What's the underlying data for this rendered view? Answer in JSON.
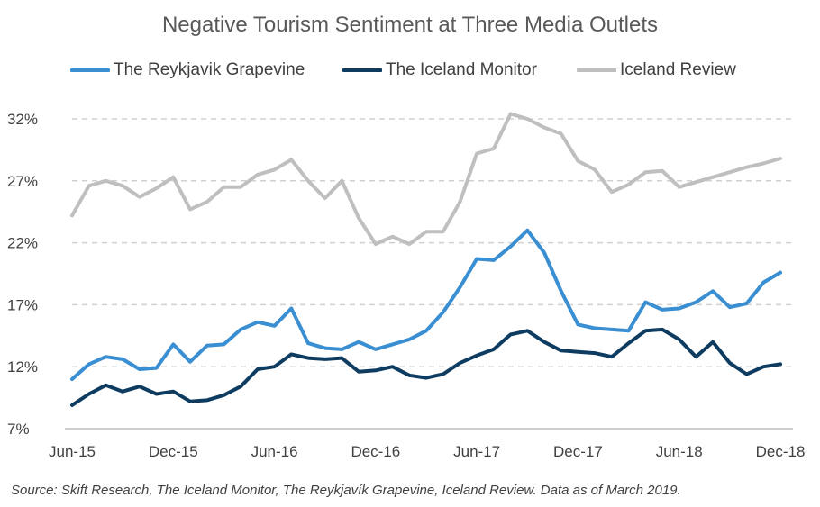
{
  "chart_data": {
    "type": "line",
    "title": "Negative Tourism Sentiment at Three Media Outlets",
    "x": [
      "Jun-15",
      "Jul-15",
      "Aug-15",
      "Sep-15",
      "Oct-15",
      "Nov-15",
      "Dec-15",
      "Jan-16",
      "Feb-16",
      "Mar-16",
      "Apr-16",
      "May-16",
      "Jun-16",
      "Jul-16",
      "Aug-16",
      "Sep-16",
      "Oct-16",
      "Nov-16",
      "Dec-16",
      "Jan-17",
      "Feb-17",
      "Mar-17",
      "Apr-17",
      "May-17",
      "Jun-17",
      "Jul-17",
      "Aug-17",
      "Sep-17",
      "Oct-17",
      "Nov-17",
      "Dec-17",
      "Jan-18",
      "Feb-18",
      "Mar-18",
      "Apr-18",
      "May-18",
      "Jun-18",
      "Jul-18",
      "Aug-18",
      "Sep-18",
      "Oct-18",
      "Nov-18",
      "Dec-18"
    ],
    "x_tick_labels": [
      "Jun-15",
      "Dec-15",
      "Jun-16",
      "Dec-16",
      "Jun-17",
      "Dec-17",
      "Jun-18",
      "Dec-18"
    ],
    "y_tick_labels": [
      "7%",
      "12%",
      "17%",
      "22%",
      "27%",
      "32%"
    ],
    "ylim": [
      7,
      32
    ],
    "y_unit": "%",
    "grid": "horizontal-dashed",
    "legend_position": "top",
    "series": [
      {
        "name": "The Reykjavik Grapevine",
        "color": "#3a8ed2",
        "values": [
          11.0,
          12.2,
          12.8,
          12.6,
          11.8,
          11.9,
          13.8,
          12.4,
          13.7,
          13.8,
          15.0,
          15.6,
          15.3,
          16.7,
          13.9,
          13.5,
          13.4,
          14.0,
          13.4,
          13.8,
          14.2,
          14.9,
          16.4,
          18.4,
          20.7,
          20.6,
          21.7,
          23.0,
          21.2,
          18.1,
          15.4,
          15.1,
          15.0,
          14.9,
          17.2,
          16.6,
          16.7,
          17.2,
          18.1,
          16.8,
          17.1,
          18.8,
          19.6
        ]
      },
      {
        "name": "The Iceland Monitor",
        "color": "#0e3c61",
        "values": [
          8.9,
          9.8,
          10.5,
          10.0,
          10.4,
          9.8,
          10.0,
          9.2,
          9.3,
          9.7,
          10.4,
          11.8,
          12.0,
          13.0,
          12.7,
          12.6,
          12.7,
          11.6,
          11.7,
          12.0,
          11.3,
          11.1,
          11.4,
          12.3,
          12.9,
          13.4,
          14.6,
          14.9,
          14.0,
          13.3,
          13.2,
          13.1,
          12.8,
          13.9,
          14.9,
          15.0,
          14.2,
          12.8,
          14.0,
          12.3,
          11.4,
          12.0,
          12.2
        ]
      },
      {
        "name": "Iceland Review",
        "color": "#bfbfbf",
        "values": [
          24.2,
          26.6,
          27.0,
          26.6,
          25.7,
          26.4,
          27.3,
          24.7,
          25.3,
          26.5,
          26.5,
          27.5,
          27.9,
          28.7,
          27.0,
          25.6,
          27.0,
          24.0,
          21.9,
          22.5,
          21.9,
          22.9,
          22.9,
          25.3,
          29.2,
          29.6,
          32.4,
          32.0,
          31.3,
          30.8,
          28.6,
          27.9,
          26.1,
          26.7,
          27.7,
          27.8,
          26.5,
          26.9,
          27.3,
          27.7,
          28.1,
          28.4,
          28.8
        ]
      }
    ]
  },
  "source_note": "Source: Skift Research, The Iceland Monitor, The Reykjavík Grapevine, Iceland Review. Data as of March 2019."
}
